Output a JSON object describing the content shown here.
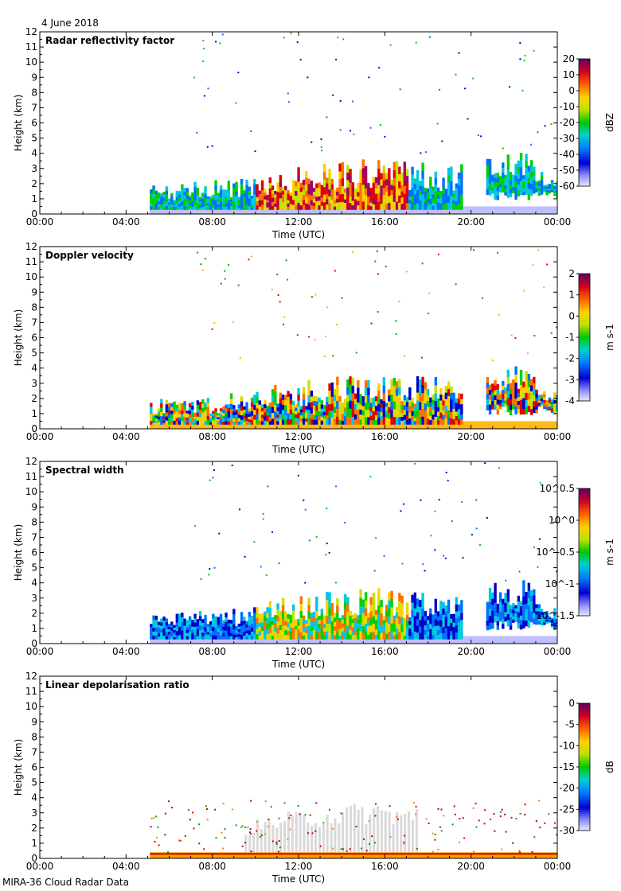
{
  "date_label": "4 June 2018",
  "footer_label": "MIRA-36 Cloud Radar Data",
  "colors": {
    "axis": "#000000",
    "colormap": [
      "#c8c8ff",
      "#0000c8",
      "#0070ff",
      "#00c8e0",
      "#00d000",
      "#c8e000",
      "#ffd000",
      "#ff7000",
      "#e00000",
      "#a00060",
      "#600060"
    ],
    "ldr_gray": "#d0d0d0"
  },
  "chart_data": [
    {
      "type": "heatmap",
      "title": "Radar reflectivity factor",
      "xlabel": "Time (UTC)",
      "ylabel": "Height (km)",
      "xticks": [
        "00:00",
        "04:00",
        "08:00",
        "12:00",
        "16:00",
        "20:00",
        "00:00"
      ],
      "xlim_hours": [
        0,
        24
      ],
      "ylim": [
        0,
        12
      ],
      "yticks": [
        "0",
        "1",
        "2",
        "3",
        "4",
        "5",
        "6",
        "7",
        "8",
        "9",
        "10",
        "11",
        "12"
      ],
      "colorbar": {
        "label": "dBZ",
        "ticks": [
          "20",
          "10",
          "0",
          "-10",
          "-20",
          "-30",
          "-40",
          "-50",
          "-60"
        ],
        "range": [
          -60,
          20
        ]
      },
      "data_start_hour": 5.1,
      "cloud_tops_km": [
        {
          "t": 5.5,
          "h": 2.0
        },
        {
          "t": 7.0,
          "h": 2.1
        },
        {
          "t": 8.5,
          "h": 2.3
        },
        {
          "t": 10.0,
          "h": 2.6
        },
        {
          "t": 11.0,
          "h": 3.0
        },
        {
          "t": 12.5,
          "h": 3.3
        },
        {
          "t": 14.0,
          "h": 3.6
        },
        {
          "t": 15.5,
          "h": 3.8
        },
        {
          "t": 16.7,
          "h": 3.5
        },
        {
          "t": 18.0,
          "h": 3.5
        },
        {
          "t": 19.0,
          "h": 3.2
        },
        {
          "t": 21.0,
          "h": 4.0
        },
        {
          "t": 22.5,
          "h": 4.2
        },
        {
          "t": 23.8,
          "h": 2.5
        }
      ]
    },
    {
      "type": "heatmap",
      "title": "Doppler velocity",
      "xlabel": "Time (UTC)",
      "ylabel": "Height (km)",
      "xticks": [
        "00:00",
        "04:00",
        "08:00",
        "12:00",
        "16:00",
        "20:00",
        "00:00"
      ],
      "xlim_hours": [
        0,
        24
      ],
      "ylim": [
        0,
        12
      ],
      "yticks": [
        "0",
        "1",
        "2",
        "3",
        "4",
        "5",
        "6",
        "7",
        "8",
        "9",
        "10",
        "11",
        "12"
      ],
      "colorbar": {
        "label": "m s-1",
        "ticks": [
          "2",
          "1",
          "0",
          "-1",
          "-2",
          "-3",
          "-4"
        ],
        "range": [
          -4,
          2
        ]
      },
      "data_start_hour": 5.1
    },
    {
      "type": "heatmap",
      "title": "Spectral width",
      "xlabel": "Time (UTC)",
      "ylabel": "Height (km)",
      "xticks": [
        "00:00",
        "04:00",
        "08:00",
        "12:00",
        "16:00",
        "20:00",
        "00:00"
      ],
      "xlim_hours": [
        0,
        24
      ],
      "ylim": [
        0,
        12
      ],
      "yticks": [
        "0",
        "1",
        "2",
        "3",
        "4",
        "5",
        "6",
        "7",
        "8",
        "9",
        "10",
        "11",
        "12"
      ],
      "colorbar": {
        "label": "m s-1",
        "ticks": [
          "10^0.5",
          "10^0",
          "10^-0.5",
          "10^-1",
          "10^-1.5"
        ],
        "range": [
          -1.5,
          0.5
        ]
      },
      "data_start_hour": 5.1
    },
    {
      "type": "heatmap",
      "title": "Linear depolarisation ratio",
      "xlabel": "Time (UTC)",
      "ylabel": "Height (km)",
      "xticks": [
        "00:00",
        "04:00",
        "08:00",
        "12:00",
        "16:00",
        "20:00",
        "00:00"
      ],
      "xlim_hours": [
        0,
        24
      ],
      "ylim": [
        0,
        12
      ],
      "yticks": [
        "0",
        "1",
        "2",
        "3",
        "4",
        "5",
        "6",
        "7",
        "8",
        "9",
        "10",
        "11",
        "12"
      ],
      "colorbar": {
        "label": "dB",
        "ticks": [
          "0",
          "-5",
          "-10",
          "-15",
          "-20",
          "-25",
          "-30"
        ],
        "range": [
          -30,
          0
        ]
      },
      "data_start_hour": 5.1
    }
  ]
}
